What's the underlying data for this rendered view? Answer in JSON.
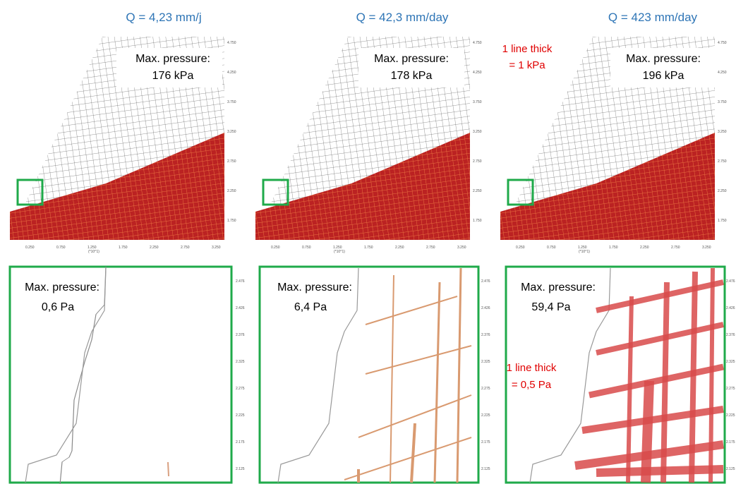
{
  "columns": [
    {
      "title": "Q = 4,23 mm/j",
      "top": {
        "label": "Max. pressure:",
        "value": "176 kPa"
      },
      "bottom": {
        "label": "Max. pressure:",
        "value": "0,6 Pa"
      }
    },
    {
      "title": "Q = 42,3 mm/day",
      "top": {
        "label": "Max. pressure:",
        "value": "178 kPa"
      },
      "bottom": {
        "label": "Max. pressure:",
        "value": "6,4 Pa"
      }
    },
    {
      "title": "Q = 423 mm/day",
      "top": {
        "label": "Max. pressure:",
        "value": "196 kPa"
      },
      "bottom": {
        "label": "Max. pressure:",
        "value": "59,4 Pa"
      }
    }
  ],
  "annotations": {
    "top": [
      "1 line thick",
      "= 1 kPa"
    ],
    "bottom": [
      "1 line thick",
      "= 0,5 Pa"
    ]
  },
  "top_axis": {
    "y_ticks": [
      "4.750",
      "4.250",
      "3.750",
      "3.250",
      "2.750",
      "2.250",
      "1.750"
    ],
    "x_ticks": [
      "0.250",
      "0.750",
      "1.250",
      "1.750",
      "2.250",
      "2.750",
      "3.250"
    ],
    "x_unit": "(*10^1)"
  },
  "bottom_axis": {
    "y_ticks": [
      "2.476",
      "2.426",
      "2.376",
      "2.325",
      "2.275",
      "2.225",
      "2.175",
      "2.125"
    ]
  }
}
